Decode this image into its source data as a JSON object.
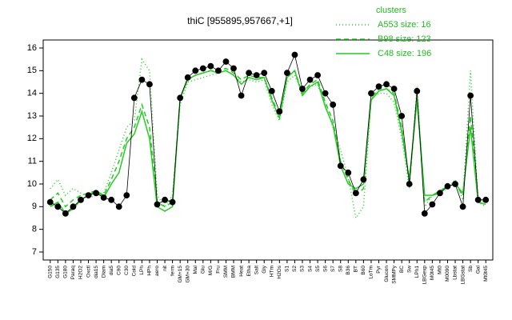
{
  "chart_data": {
    "type": "line",
    "title": "thiC [955895,957667,+1]",
    "legend_title": "clusters",
    "legend": "topright",
    "categories": [
      "G150",
      "G135",
      "G180",
      "Paraq",
      "H2O2",
      "Oxctl",
      "dia15",
      "Diam",
      "dia5",
      "C90",
      "C30",
      "Cold",
      "LPh",
      "HPh",
      "aero",
      "nit",
      "ferm",
      "GM+15",
      "GM+30",
      "Mal",
      "Glu",
      "M/G",
      "Fru",
      "SMM",
      "BMM",
      "Heat",
      "Etha",
      "Salt",
      "Gly",
      "HTm",
      "H2Os",
      "S1",
      "S2",
      "S3",
      "S4",
      "S5",
      "S6",
      "S7",
      "S8",
      "B36",
      "BT",
      "B60",
      "LoTm",
      "Pyr",
      "Glucon",
      "SMMPy",
      "BC",
      "Sw",
      "LPh1",
      "LBGexp",
      "M0t45",
      "Mt0",
      "M0090",
      "Lbstat",
      "LBGstat",
      "Sb",
      "Gal",
      "Mt0t45"
    ],
    "points": {
      "color": "#000000",
      "values": [
        9.2,
        9.0,
        8.7,
        9.0,
        9.3,
        9.5,
        9.6,
        9.4,
        9.3,
        9.0,
        9.5,
        13.8,
        14.6,
        14.4,
        9.1,
        9.3,
        9.2,
        13.8,
        14.7,
        15.0,
        15.1,
        15.2,
        15.0,
        15.4,
        15.1,
        13.9,
        14.9,
        14.8,
        14.9,
        14.1,
        13.2,
        14.9,
        15.7,
        14.2,
        14.6,
        14.8,
        14.0,
        13.5,
        10.8,
        10.5,
        9.6,
        10.2,
        14.0,
        14.3,
        14.4,
        14.2,
        13.0,
        10.0,
        14.1,
        8.7,
        9.1,
        9.6,
        9.9,
        10.0,
        9.0,
        13.9,
        9.3,
        9.3
      ]
    },
    "series": [
      {
        "name": "A553 size: 16",
        "color": "#22cc22",
        "style": "dotted",
        "values": [
          9.8,
          10.2,
          9.5,
          9.8,
          9.6,
          9.4,
          9.5,
          9.6,
          10.5,
          11.5,
          12.5,
          12.8,
          15.5,
          15.0,
          9.5,
          9.0,
          9.5,
          13.5,
          14.5,
          14.6,
          14.7,
          14.8,
          14.9,
          15.0,
          14.8,
          14.5,
          14.6,
          14.5,
          14.6,
          13.5,
          12.8,
          14.5,
          14.8,
          14.0,
          14.3,
          14.4,
          13.5,
          12.5,
          11.5,
          10.3,
          8.5,
          9.0,
          13.8,
          14.0,
          14.0,
          13.6,
          12.0,
          9.8,
          14.3,
          9.0,
          9.5,
          9.6,
          9.8,
          10.2,
          9.3,
          15.0,
          9.2,
          9.0
        ]
      },
      {
        "name": "B98 size: 123",
        "color": "#22cc22",
        "style": "dashed",
        "values": [
          9.3,
          9.6,
          9.0,
          9.3,
          9.5,
          9.6,
          9.7,
          9.5,
          10.2,
          11.0,
          12.0,
          12.5,
          13.5,
          12.5,
          9.2,
          9.0,
          9.2,
          13.8,
          14.6,
          14.8,
          14.9,
          15.0,
          15.0,
          15.1,
          14.9,
          14.6,
          14.8,
          14.7,
          14.7,
          13.8,
          13.0,
          14.8,
          15.0,
          14.0,
          14.4,
          14.6,
          13.6,
          12.8,
          11.0,
          10.2,
          9.5,
          9.8,
          13.8,
          14.2,
          14.2,
          14.0,
          12.5,
          10.0,
          13.8,
          9.2,
          9.5,
          9.6,
          9.9,
          10.0,
          9.5,
          13.0,
          9.3,
          9.2
        ]
      },
      {
        "name": "C48 size: 196",
        "color": "#22cc22",
        "style": "solid",
        "values": [
          9.0,
          9.2,
          8.7,
          8.9,
          9.3,
          9.5,
          9.7,
          9.4,
          10.0,
          10.5,
          11.8,
          12.2,
          13.2,
          12.0,
          9.0,
          8.8,
          9.0,
          13.8,
          14.6,
          14.8,
          14.9,
          15.0,
          14.9,
          15.0,
          14.8,
          14.4,
          14.7,
          14.6,
          14.7,
          13.7,
          12.9,
          14.7,
          15.0,
          13.9,
          14.3,
          14.5,
          13.4,
          12.6,
          10.8,
          10.0,
          9.8,
          10.0,
          13.7,
          14.1,
          14.2,
          13.9,
          12.3,
          10.2,
          13.7,
          9.5,
          9.5,
          9.7,
          9.9,
          10.0,
          9.6,
          12.5,
          9.2,
          9.1
        ]
      }
    ],
    "ylim": [
      7,
      16
    ],
    "yticks": [
      7,
      8,
      9,
      10,
      11,
      12,
      13,
      14,
      15,
      16
    ]
  }
}
